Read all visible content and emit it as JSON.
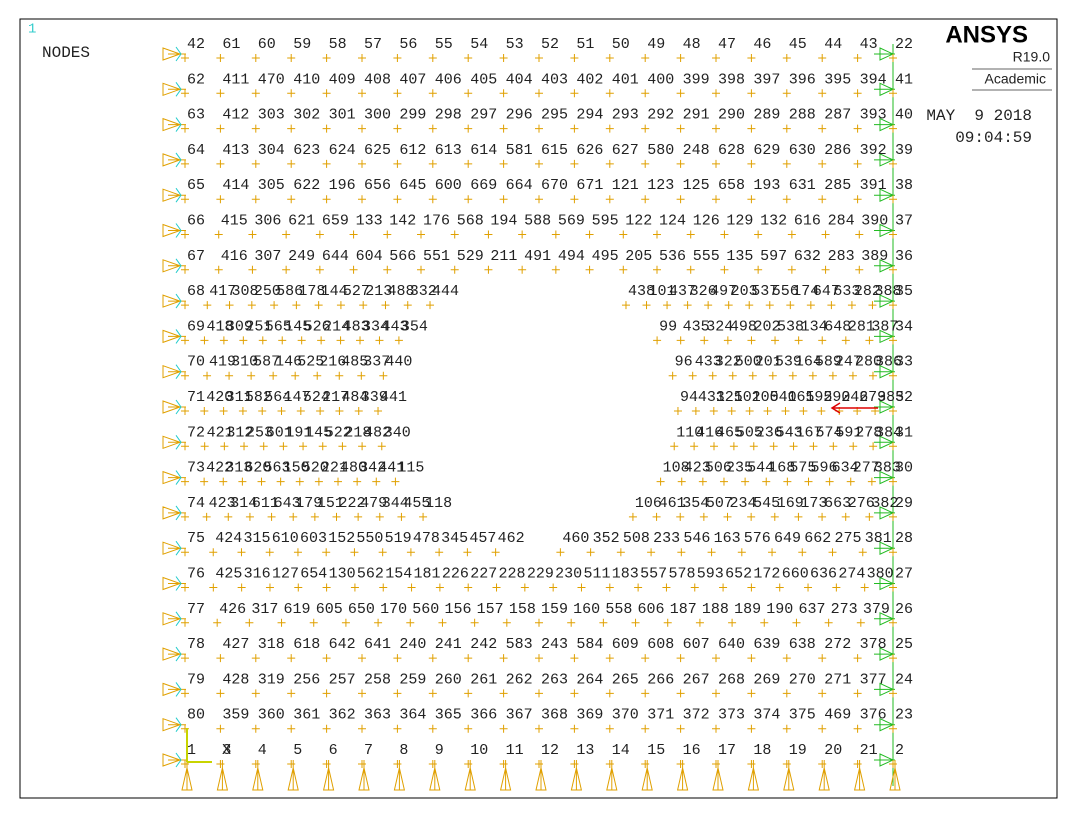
{
  "window_number": "1",
  "plot_label": "NODES",
  "brand": {
    "name": "ANSYS",
    "version": "R19.0",
    "edition": "Academic"
  },
  "date": "MAY  9 2018",
  "time": "09:04:59",
  "axis_label": "X",
  "node_rows": [
    {
      "labels": [
        42,
        61,
        60,
        59,
        58,
        57,
        56,
        55,
        54,
        53,
        52,
        51,
        50,
        49,
        48,
        47,
        46,
        45,
        44,
        43,
        22
      ]
    },
    {
      "labels": [
        62,
        411,
        470,
        410,
        409,
        408,
        407,
        406,
        405,
        404,
        403,
        402,
        401,
        400,
        399,
        398,
        397,
        396,
        395,
        394,
        41
      ]
    },
    {
      "labels": [
        63,
        412,
        303,
        302,
        301,
        300,
        299,
        298,
        297,
        296,
        295,
        294,
        293,
        292,
        291,
        290,
        289,
        288,
        287,
        393,
        40
      ]
    },
    {
      "labels": [
        64,
        413,
        304,
        623,
        624,
        625,
        612,
        613,
        614,
        581,
        615,
        626,
        627,
        580,
        248,
        628,
        629,
        630,
        286,
        392,
        39
      ]
    },
    {
      "labels": [
        65,
        414,
        305,
        622,
        196,
        656,
        645,
        600,
        669,
        664,
        670,
        671,
        121,
        123,
        125,
        658,
        193,
        631,
        285,
        391,
        38
      ]
    },
    {
      "labels": [
        66,
        415,
        306,
        621,
        659,
        133,
        142,
        176,
        568,
        194,
        588,
        569,
        595,
        122,
        124,
        126,
        129,
        132,
        616,
        284,
        390,
        37
      ]
    },
    {
      "labels": [
        67,
        416,
        307,
        249,
        644,
        604,
        566,
        551,
        529,
        211,
        491,
        494,
        495,
        205,
        536,
        555,
        135,
        597,
        632,
        283,
        389,
        36
      ]
    },
    {
      "left": [
        68,
        417,
        308,
        250,
        586,
        178,
        144,
        527,
        213,
        488,
        332,
        444
      ],
      "right": [
        438,
        101,
        437,
        326,
        497,
        203,
        537,
        556,
        174,
        647,
        633,
        282,
        388,
        35
      ]
    },
    {
      "left": [
        69,
        418,
        309,
        251,
        565,
        145,
        526,
        214,
        483,
        334,
        443,
        354
      ],
      "right": [
        99,
        435,
        324,
        498,
        202,
        538,
        134,
        648,
        281,
        387,
        34
      ]
    },
    {
      "left": [
        70,
        419,
        310,
        587,
        146,
        525,
        216,
        485,
        337,
        440
      ],
      "right": [
        96,
        433,
        322,
        500,
        201,
        539,
        164,
        589,
        247,
        280,
        386,
        33
      ]
    },
    {
      "left": [
        71,
        420,
        311,
        582,
        564,
        147,
        524,
        217,
        484,
        339,
        441
      ],
      "right": [
        94,
        431,
        321,
        501,
        200,
        540,
        165,
        192,
        590,
        246,
        279,
        385,
        32
      ]
    },
    {
      "left": [
        72,
        421,
        312,
        253,
        601,
        191,
        145,
        522,
        218,
        482,
        340
      ],
      "right": [
        110,
        416,
        465,
        505,
        236,
        543,
        167,
        574,
        591,
        278,
        384,
        31
      ]
    },
    {
      "left": [
        73,
        422,
        313,
        620,
        563,
        150,
        520,
        221,
        480,
        342,
        441,
        115
      ],
      "right": [
        108,
        423,
        506,
        235,
        544,
        168,
        575,
        596,
        634,
        277,
        383,
        30
      ]
    },
    {
      "left": [
        74,
        423,
        314,
        611,
        643,
        179,
        151,
        222,
        479,
        344,
        455,
        118
      ],
      "right": [
        106,
        461,
        354,
        507,
        234,
        545,
        169,
        173,
        663,
        276,
        382,
        29
      ]
    },
    {
      "left": [
        75,
        424,
        315,
        610,
        603,
        152,
        550,
        519,
        478,
        345,
        457,
        462
      ],
      "right": [
        460,
        352,
        508,
        233,
        546,
        163,
        576,
        649,
        662,
        275,
        381,
        28
      ]
    },
    {
      "labels": [
        76,
        425,
        316,
        127,
        654,
        130,
        562,
        154,
        181,
        226,
        227,
        228,
        229,
        230,
        511,
        183,
        557,
        578,
        593,
        652,
        172,
        660,
        636,
        274,
        380,
        27
      ]
    },
    {
      "labels": [
        77,
        426,
        317,
        619,
        605,
        650,
        170,
        560,
        156,
        157,
        158,
        159,
        160,
        558,
        606,
        187,
        188,
        189,
        190,
        637,
        273,
        379,
        26
      ]
    },
    {
      "labels": [
        78,
        427,
        318,
        618,
        642,
        641,
        240,
        241,
        242,
        583,
        243,
        584,
        609,
        608,
        607,
        640,
        639,
        638,
        272,
        378,
        25
      ]
    },
    {
      "labels": [
        79,
        428,
        319,
        256,
        257,
        258,
        259,
        260,
        261,
        262,
        263,
        264,
        265,
        266,
        267,
        268,
        269,
        270,
        271,
        377,
        24
      ]
    },
    {
      "labels": [
        80,
        359,
        360,
        361,
        362,
        363,
        364,
        365,
        366,
        367,
        368,
        369,
        370,
        371,
        372,
        373,
        374,
        375,
        469,
        376,
        23
      ]
    },
    {
      "labels": [
        1,
        3,
        4,
        5,
        6,
        7,
        8,
        9,
        10,
        11,
        12,
        13,
        14,
        15,
        16,
        17,
        18,
        19,
        20,
        21,
        2
      ]
    }
  ]
}
